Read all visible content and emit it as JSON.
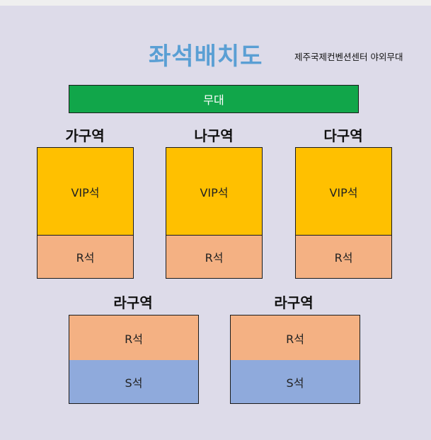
{
  "title": "좌석배치도",
  "venue": "제주국제컨벤션센터 야외무대",
  "stage_label": "무대",
  "zones": [
    {
      "label": "가구역",
      "seats": [
        "VIP석",
        "R석"
      ]
    },
    {
      "label": "나구역",
      "seats": [
        "VIP석",
        "R석"
      ]
    },
    {
      "label": "다구역",
      "seats": [
        "VIP석",
        "R석"
      ]
    },
    {
      "label": "라구역",
      "seats": [
        "R석",
        "S석"
      ]
    },
    {
      "label": "라구역",
      "seats": [
        "R석",
        "S석"
      ]
    }
  ],
  "colors": {
    "title": "#5a9fd4",
    "stage": "#11a64a",
    "vip": "#ffc000",
    "r_seat": "#f4b183",
    "s_seat": "#8faadc",
    "background": "#dddbe9"
  }
}
